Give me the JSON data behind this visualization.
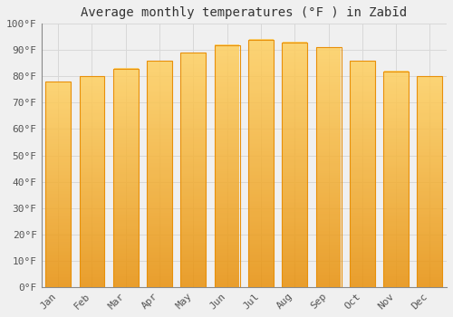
{
  "title": "Average monthly temperatures (°F ) in Zabīd",
  "months": [
    "Jan",
    "Feb",
    "Mar",
    "Apr",
    "May",
    "Jun",
    "Jul",
    "Aug",
    "Sep",
    "Oct",
    "Nov",
    "Dec"
  ],
  "values": [
    78,
    80,
    83,
    86,
    89,
    92,
    94,
    93,
    91,
    86,
    82,
    80
  ],
  "bar_color_main": "#FFC020",
  "bar_color_edge": "#E8900A",
  "bar_color_light": "#FFD060",
  "background_color": "#f0f0f0",
  "ylim": [
    0,
    100
  ],
  "yticks": [
    0,
    10,
    20,
    30,
    40,
    50,
    60,
    70,
    80,
    90,
    100
  ],
  "grid_color": "#d8d8d8",
  "title_fontsize": 10,
  "tick_fontsize": 8,
  "bar_width": 0.75
}
